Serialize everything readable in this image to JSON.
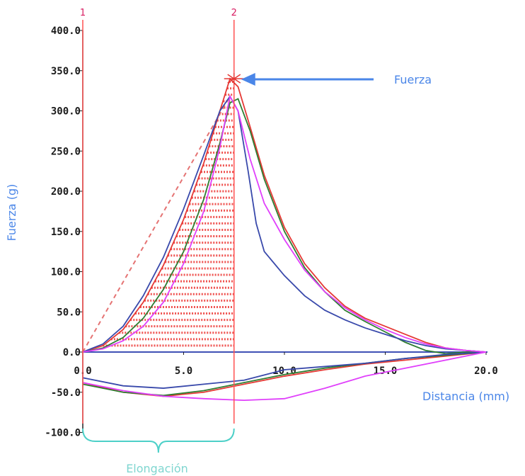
{
  "chart_data": {
    "type": "line",
    "title": "",
    "xlabel": "Distancia (mm)",
    "ylabel": "Fuerza (g)",
    "xlim": [
      0,
      20
    ],
    "ylim": [
      -100,
      400
    ],
    "x_ticks": [
      "0.0",
      "5.0",
      "10.0",
      "15.0",
      "20.0"
    ],
    "y_ticks": [
      "400.0",
      "350.0",
      "300.0",
      "250.0",
      "200.0",
      "150.0",
      "100.0",
      "50.0",
      "0.0",
      "-50.0",
      "-100.0"
    ],
    "y_tick_values": [
      400,
      350,
      300,
      250,
      200,
      150,
      100,
      50,
      0,
      -50,
      -100
    ],
    "x_tick_values": [
      0,
      5,
      10,
      15,
      20
    ],
    "markers": [
      {
        "label": "1",
        "x": 0.0
      },
      {
        "label": "2",
        "x": 7.5
      }
    ],
    "annotations": {
      "peak_label": "Fuerza",
      "peak_point": {
        "x": 7.5,
        "y": 340
      },
      "elongation_label": "Elongación"
    },
    "gradient_line": {
      "x": [
        0,
        7.3
      ],
      "y": [
        0,
        318
      ]
    },
    "series": [
      {
        "color": "#e53935",
        "x": [
          0,
          1,
          2,
          3,
          4,
          5,
          6,
          6.8,
          7.3,
          7.7,
          8.3,
          9,
          10,
          11,
          12,
          13,
          14,
          15,
          16,
          17,
          18,
          19,
          20
        ],
        "y": [
          0,
          8,
          28,
          62,
          108,
          165,
          235,
          300,
          340,
          330,
          280,
          220,
          155,
          110,
          80,
          57,
          42,
          32,
          22,
          12,
          5,
          2,
          0
        ],
        "return_x": [
          20,
          18,
          16,
          14,
          12,
          10,
          8,
          6,
          4,
          2,
          0
        ],
        "return_y": [
          0,
          -5,
          -10,
          -15,
          -22,
          -30,
          -40,
          -50,
          -55,
          -50,
          -38
        ]
      },
      {
        "color": "#2e7d32",
        "x": [
          0,
          1,
          2,
          3,
          4,
          5,
          6,
          6.8,
          7.3,
          7.7,
          8.3,
          9,
          10,
          11,
          12,
          13,
          14,
          15,
          16,
          17,
          18,
          19,
          20
        ],
        "y": [
          0,
          5,
          18,
          42,
          78,
          125,
          190,
          260,
          310,
          315,
          275,
          215,
          150,
          105,
          75,
          52,
          38,
          25,
          12,
          2,
          -2,
          0,
          0
        ],
        "return_x": [
          20,
          18,
          16,
          14,
          12,
          10,
          8,
          6,
          4,
          2,
          0
        ],
        "return_y": [
          0,
          -4,
          -8,
          -14,
          -20,
          -28,
          -38,
          -48,
          -54,
          -50,
          -40
        ]
      },
      {
        "color": "#3949ab",
        "x": [
          0,
          1,
          2,
          3,
          4,
          5,
          6,
          6.8,
          7.3,
          7.7,
          8.2,
          8.6,
          9,
          10,
          11,
          12,
          13,
          14,
          15,
          16,
          17,
          18,
          19,
          20
        ],
        "y": [
          0,
          10,
          32,
          70,
          118,
          178,
          245,
          300,
          318,
          300,
          225,
          160,
          125,
          95,
          70,
          52,
          40,
          30,
          22,
          14,
          8,
          4,
          2,
          0
        ],
        "return_x": [
          20,
          18,
          16,
          14,
          12,
          10,
          8,
          6,
          4,
          2,
          0
        ],
        "return_y": [
          0,
          -3,
          -8,
          -14,
          -18,
          -22,
          -35,
          -40,
          -45,
          -42,
          -32
        ]
      },
      {
        "color": "#e040fb",
        "x": [
          0,
          1,
          2,
          3,
          4,
          5,
          6,
          6.8,
          7.3,
          7.7,
          8.3,
          9,
          10,
          11,
          12,
          13,
          14,
          15,
          16,
          17,
          18,
          19,
          20
        ],
        "y": [
          0,
          4,
          14,
          32,
          62,
          110,
          175,
          255,
          318,
          300,
          240,
          185,
          140,
          102,
          75,
          55,
          40,
          28,
          18,
          10,
          5,
          2,
          0
        ],
        "return_x": [
          20,
          18,
          16,
          14,
          12,
          10,
          8,
          6,
          4,
          2,
          0
        ],
        "return_y": [
          0,
          -10,
          -20,
          -30,
          -45,
          -58,
          -60,
          -58,
          -55,
          -48,
          -38
        ]
      }
    ]
  }
}
